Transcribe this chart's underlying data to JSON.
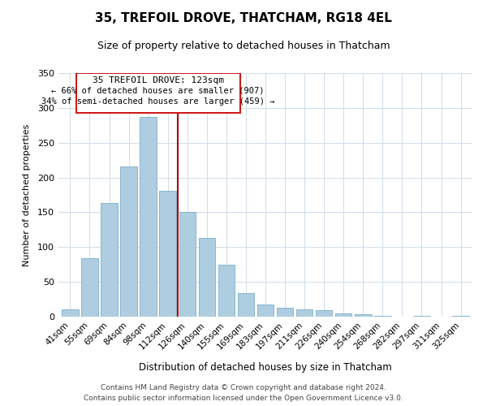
{
  "title": "35, TREFOIL DROVE, THATCHAM, RG18 4EL",
  "subtitle": "Size of property relative to detached houses in Thatcham",
  "xlabel": "Distribution of detached houses by size in Thatcham",
  "ylabel": "Number of detached properties",
  "bar_labels": [
    "41sqm",
    "55sqm",
    "69sqm",
    "84sqm",
    "98sqm",
    "112sqm",
    "126sqm",
    "140sqm",
    "155sqm",
    "169sqm",
    "183sqm",
    "197sqm",
    "211sqm",
    "226sqm",
    "240sqm",
    "254sqm",
    "268sqm",
    "282sqm",
    "297sqm",
    "311sqm",
    "325sqm"
  ],
  "bar_values": [
    11,
    84,
    163,
    216,
    287,
    181,
    150,
    113,
    75,
    34,
    18,
    13,
    11,
    9,
    5,
    3,
    1,
    0,
    1,
    0,
    1
  ],
  "bar_color": "#aecde0",
  "bar_edge_color": "#7aafc8",
  "marker_line_color": "#aa0000",
  "annotation_title": "35 TREFOIL DROVE: 123sqm",
  "annotation_line1": "← 66% of detached houses are smaller (907)",
  "annotation_line2": "34% of semi-detached houses are larger (459) →",
  "ylim": [
    0,
    350
  ],
  "yticks": [
    0,
    50,
    100,
    150,
    200,
    250,
    300,
    350
  ],
  "footer_line1": "Contains HM Land Registry data © Crown copyright and database right 2024.",
  "footer_line2": "Contains public sector information licensed under the Open Government Licence v3.0.",
  "background_color": "#ffffff",
  "grid_color": "#d0dce8"
}
